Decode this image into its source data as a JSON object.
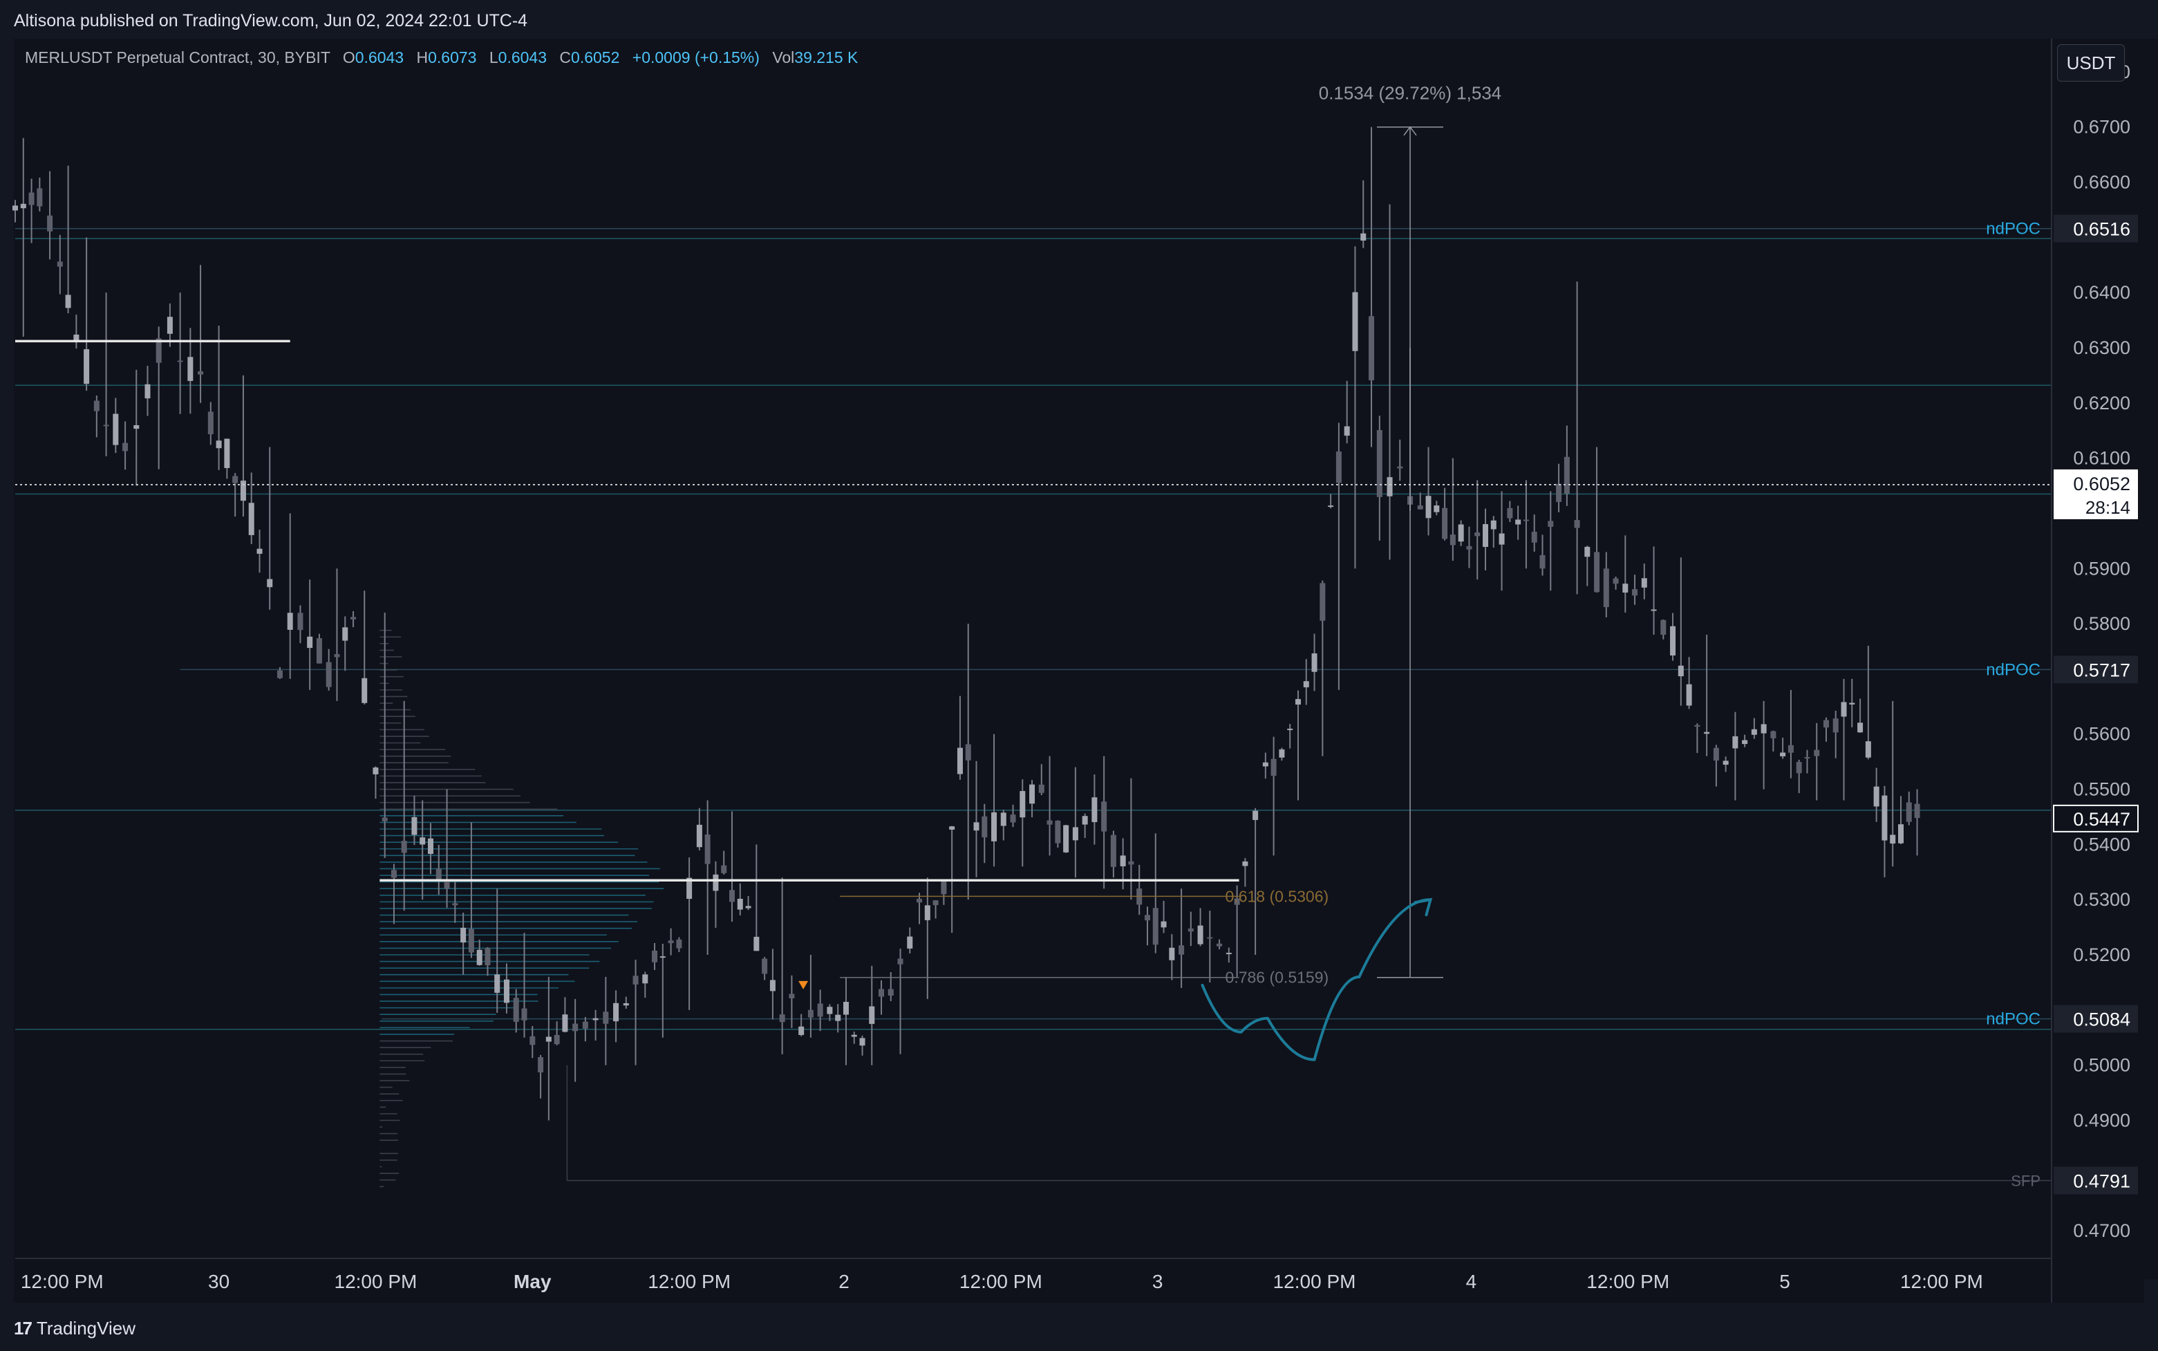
{
  "header": {
    "publisher": "Altisona published on TradingView.com, Jun 02, 2024 22:01 UTC-4",
    "currency_button": "USDT"
  },
  "legend": {
    "symbol": "MERLUSDT Perpetual Contract, 30, BYBIT",
    "open_label": "O",
    "open": "0.6043",
    "high_label": "H",
    "high": "0.6073",
    "low_label": "L",
    "low": "0.6043",
    "close_label": "C",
    "close": "0.6052",
    "change": "+0.0009 (+0.15%)",
    "volume_label": "Vol",
    "volume": "39.215 K"
  },
  "footer": {
    "brand": "TradingView",
    "brand_mark": "17"
  },
  "colors": {
    "background": "#0f121b",
    "candle": "#787b86",
    "teal_line": "#1e5a66",
    "volume_profile": "#1f7891",
    "fib_gold": "#8a6a33",
    "ndpoc_label": "#2aa9e0",
    "arrow": "#1c7c99",
    "sfp_label": "#5d606b"
  },
  "chart_data": {
    "type": "candlestick",
    "symbol": "MERLUSDT Perpetual Contract",
    "interval": "30",
    "ylim": [
      0.465,
      0.686
    ],
    "xlim": [
      0,
      100
    ],
    "y_ticks": [
      "0.6800",
      "0.6700",
      "0.6600",
      "0.6400",
      "0.6300",
      "0.6200",
      "0.6100",
      "0.5900",
      "0.5800",
      "0.5600",
      "0.5500",
      "0.5400",
      "0.5300",
      "0.5200",
      "0.5000",
      "0.4900",
      "0.4700"
    ],
    "x_ticks": [
      {
        "label": "12:00 PM",
        "x": 2.3
      },
      {
        "label": "30",
        "x": 10.0
      },
      {
        "label": "12:00 PM",
        "x": 17.7
      },
      {
        "label": "May",
        "x": 25.4
      },
      {
        "label": "12:00 PM",
        "x": 33.1
      },
      {
        "label": "2",
        "x": 40.7
      },
      {
        "label": "12:00 PM",
        "x": 48.4
      },
      {
        "label": "3",
        "x": 56.1
      },
      {
        "label": "12:00 PM",
        "x": 63.8
      },
      {
        "label": "4",
        "x": 71.5
      },
      {
        "label": "12:00 PM",
        "x": 79.2
      },
      {
        "label": "5",
        "x": 86.9
      },
      {
        "label": "12:00 PM",
        "x": 94.6
      }
    ],
    "current_price": {
      "value": 0.6052,
      "label": "0.6052",
      "countdown": "28:14"
    },
    "ndpoc_levels": [
      {
        "label": "ndPOC",
        "value": 0.6516,
        "value_label": "0.6516",
        "x_start": 0
      },
      {
        "label": "ndPOC",
        "value": 0.5717,
        "value_label": "0.5717",
        "x_start": 8.1
      },
      {
        "label": "ndPOC",
        "value": 0.5084,
        "value_label": "0.5084",
        "x_start": 18.0
      }
    ],
    "thin_levels": [
      0.6498,
      0.6232,
      0.6035,
      0.5462,
      0.5065
    ],
    "sfp_level": {
      "label": "SFP",
      "value": 0.4791,
      "value_label": "0.4791",
      "x_start": 27.1
    },
    "price_marker_right": {
      "value": 0.5447,
      "label": "0.5447"
    },
    "white_levels": [
      {
        "value": 0.6312,
        "x_start": 0,
        "x_end": 13.5
      },
      {
        "value": 0.5335,
        "x_start": 17.9,
        "x_end": 60.1
      }
    ],
    "fib_levels": [
      {
        "label": "0.618 (0.5306)",
        "value": 0.5306,
        "x_start": 40.5,
        "x_end": 60.1,
        "color": "gold"
      },
      {
        "label": "0.786 (0.5159)",
        "value": 0.5159,
        "x_start": 40.5,
        "x_end": 60.1,
        "color": "gray"
      }
    ],
    "measure": {
      "label": "0.1534 (29.72%) 1,534",
      "x": 68.5,
      "y_from": 0.5159,
      "y_to": 0.67
    },
    "projection_path": [
      [
        58.3,
        0.5145
      ],
      [
        60.2,
        0.506
      ],
      [
        61.5,
        0.5085
      ],
      [
        63.8,
        0.501
      ],
      [
        66.0,
        0.516
      ],
      [
        69.5,
        0.53
      ]
    ],
    "entry_marker": {
      "x": 38.7,
      "value": 0.514
    },
    "candles_ohlc_keyframes": [
      [
        0,
        0.64,
        0.668,
        0.632,
        0.655
      ],
      [
        1.2,
        0.655,
        0.662,
        0.646,
        0.658
      ],
      [
        2.2,
        0.658,
        0.663,
        0.642,
        0.648
      ],
      [
        3.0,
        0.648,
        0.65,
        0.628,
        0.632
      ],
      [
        4.0,
        0.632,
        0.64,
        0.615,
        0.62
      ],
      [
        5.4,
        0.62,
        0.626,
        0.605,
        0.612
      ],
      [
        6.5,
        0.612,
        0.628,
        0.608,
        0.624
      ],
      [
        7.6,
        0.624,
        0.64,
        0.618,
        0.633
      ],
      [
        8.6,
        0.633,
        0.645,
        0.62,
        0.626
      ],
      [
        9.6,
        0.626,
        0.634,
        0.612,
        0.618
      ],
      [
        10.8,
        0.618,
        0.625,
        0.6,
        0.606
      ],
      [
        12.0,
        0.606,
        0.612,
        0.592,
        0.596
      ],
      [
        13.0,
        0.596,
        0.6,
        0.57,
        0.575
      ],
      [
        14.0,
        0.575,
        0.588,
        0.568,
        0.582
      ],
      [
        15.4,
        0.582,
        0.59,
        0.566,
        0.572
      ],
      [
        16.6,
        0.572,
        0.586,
        0.57,
        0.58
      ],
      [
        17.7,
        0.58,
        0.582,
        0.552,
        0.556
      ],
      [
        18.6,
        0.556,
        0.566,
        0.528,
        0.535
      ],
      [
        19.6,
        0.535,
        0.548,
        0.53,
        0.542
      ],
      [
        20.8,
        0.542,
        0.55,
        0.532,
        0.536
      ],
      [
        22.0,
        0.536,
        0.544,
        0.52,
        0.526
      ],
      [
        23.2,
        0.526,
        0.532,
        0.512,
        0.518
      ],
      [
        24.6,
        0.518,
        0.524,
        0.505,
        0.51
      ],
      [
        25.8,
        0.51,
        0.516,
        0.49,
        0.503
      ],
      [
        27.0,
        0.503,
        0.512,
        0.497,
        0.508
      ],
      [
        28.5,
        0.508,
        0.516,
        0.5,
        0.506
      ],
      [
        30.0,
        0.506,
        0.515,
        0.5,
        0.512
      ],
      [
        31.4,
        0.512,
        0.522,
        0.505,
        0.518
      ],
      [
        32.6,
        0.518,
        0.53,
        0.51,
        0.522
      ],
      [
        33.6,
        0.522,
        0.548,
        0.52,
        0.54
      ],
      [
        34.8,
        0.54,
        0.546,
        0.526,
        0.534
      ],
      [
        36.0,
        0.534,
        0.54,
        0.525,
        0.528
      ],
      [
        37.2,
        0.528,
        0.534,
        0.51,
        0.514
      ],
      [
        38.6,
        0.514,
        0.52,
        0.505,
        0.508
      ],
      [
        40.0,
        0.508,
        0.516,
        0.5,
        0.512
      ],
      [
        41.6,
        0.512,
        0.518,
        0.5,
        0.506
      ],
      [
        43.0,
        0.506,
        0.518,
        0.502,
        0.514
      ],
      [
        44.4,
        0.514,
        0.534,
        0.512,
        0.528
      ],
      [
        45.6,
        0.528,
        0.54,
        0.524,
        0.532
      ],
      [
        46.4,
        0.532,
        0.58,
        0.53,
        0.554
      ],
      [
        47.6,
        0.554,
        0.56,
        0.536,
        0.542
      ],
      [
        49.0,
        0.542,
        0.55,
        0.536,
        0.546
      ],
      [
        50.4,
        0.546,
        0.556,
        0.538,
        0.55
      ],
      [
        51.6,
        0.55,
        0.554,
        0.534,
        0.54
      ],
      [
        53.0,
        0.54,
        0.556,
        0.532,
        0.548
      ],
      [
        54.4,
        0.548,
        0.552,
        0.53,
        0.536
      ],
      [
        55.6,
        0.536,
        0.542,
        0.522,
        0.528
      ],
      [
        56.8,
        0.528,
        0.532,
        0.514,
        0.52
      ],
      [
        58.2,
        0.52,
        0.528,
        0.515,
        0.524
      ],
      [
        59.6,
        0.524,
        0.53,
        0.516,
        0.522
      ],
      [
        60.4,
        0.522,
        0.546,
        0.52,
        0.54
      ],
      [
        61.4,
        0.54,
        0.556,
        0.538,
        0.552
      ],
      [
        62.6,
        0.552,
        0.566,
        0.548,
        0.56
      ],
      [
        63.8,
        0.56,
        0.576,
        0.556,
        0.572
      ],
      [
        64.6,
        0.572,
        0.6,
        0.568,
        0.596
      ],
      [
        65.4,
        0.596,
        0.632,
        0.59,
        0.62
      ],
      [
        66.2,
        0.62,
        0.67,
        0.612,
        0.65
      ],
      [
        67.0,
        0.65,
        0.656,
        0.604,
        0.612
      ],
      [
        68.0,
        0.612,
        0.63,
        0.604,
        0.608
      ],
      [
        69.0,
        0.608,
        0.612,
        0.596,
        0.602
      ],
      [
        70.2,
        0.602,
        0.61,
        0.592,
        0.598
      ],
      [
        71.4,
        0.598,
        0.606,
        0.588,
        0.594
      ],
      [
        72.6,
        0.594,
        0.604,
        0.586,
        0.596
      ],
      [
        73.8,
        0.596,
        0.606,
        0.59,
        0.6
      ],
      [
        75.0,
        0.6,
        0.604,
        0.586,
        0.592
      ],
      [
        76.2,
        0.592,
        0.642,
        0.59,
        0.608
      ],
      [
        77.2,
        0.608,
        0.612,
        0.586,
        0.59
      ],
      [
        78.6,
        0.59,
        0.596,
        0.582,
        0.586
      ],
      [
        80.0,
        0.586,
        0.594,
        0.578,
        0.588
      ],
      [
        81.4,
        0.588,
        0.592,
        0.57,
        0.576
      ],
      [
        82.6,
        0.576,
        0.578,
        0.556,
        0.56
      ],
      [
        84.0,
        0.56,
        0.564,
        0.548,
        0.556
      ],
      [
        85.4,
        0.556,
        0.566,
        0.55,
        0.56
      ],
      [
        86.8,
        0.56,
        0.568,
        0.552,
        0.558
      ],
      [
        88.0,
        0.558,
        0.562,
        0.548,
        0.554
      ],
      [
        89.4,
        0.554,
        0.57,
        0.548,
        0.564
      ],
      [
        90.6,
        0.564,
        0.576,
        0.558,
        0.562
      ],
      [
        91.8,
        0.562,
        0.566,
        0.536,
        0.544
      ],
      [
        93.0,
        0.544,
        0.55,
        0.538,
        0.546
      ],
      [
        93.8,
        0.546,
        0.549,
        0.54,
        0.5447
      ]
    ],
    "grid": false,
    "legend_position": "top-left"
  }
}
